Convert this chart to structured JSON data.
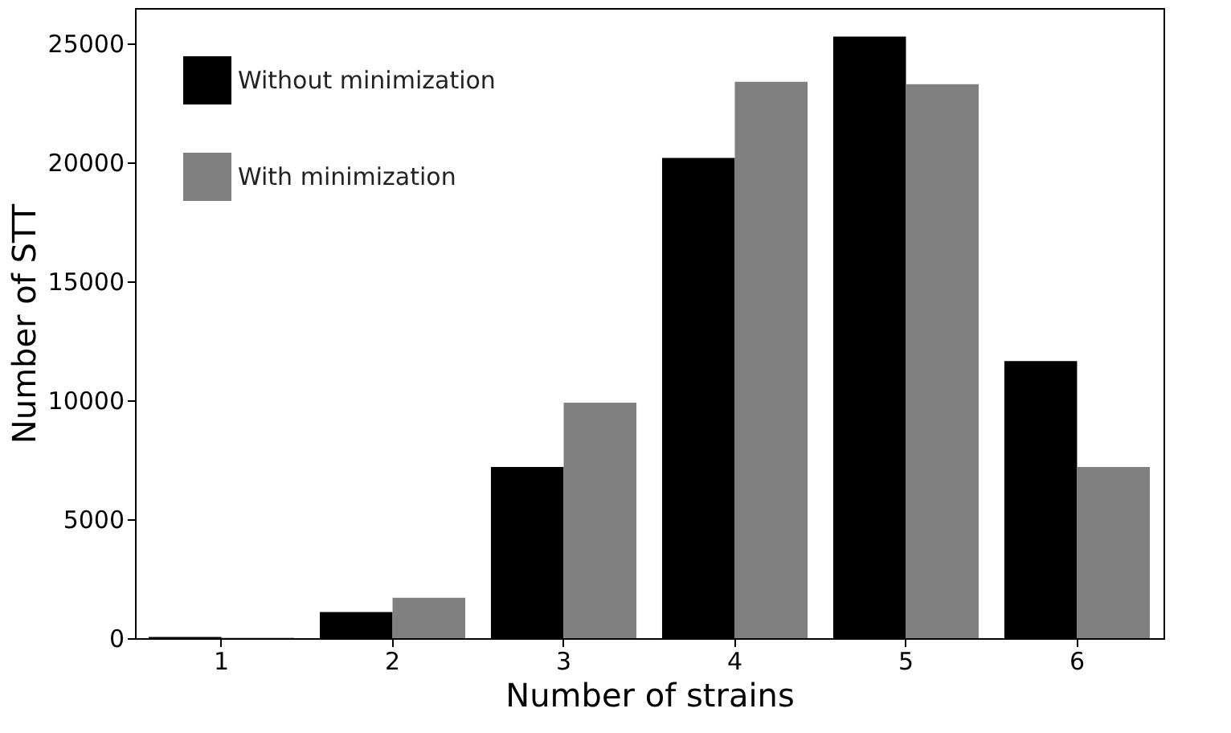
{
  "chart_data": {
    "type": "bar",
    "xlabel": "Number of strains",
    "ylabel": "Number of STT",
    "categories": [
      "1",
      "2",
      "3",
      "4",
      "5",
      "6"
    ],
    "series": [
      {
        "name": "Without minimization",
        "color": "#000000",
        "values": [
          50,
          1100,
          7200,
          20200,
          25300,
          11650
        ]
      },
      {
        "name": "With minimization",
        "color": "#808080",
        "values": [
          20,
          1700,
          9900,
          23400,
          23300,
          7200
        ]
      }
    ],
    "ylim": [
      0,
      26500
    ],
    "yticks": [
      0,
      5000,
      10000,
      15000,
      20000,
      25000
    ],
    "grid": false,
    "legend": "top left"
  }
}
